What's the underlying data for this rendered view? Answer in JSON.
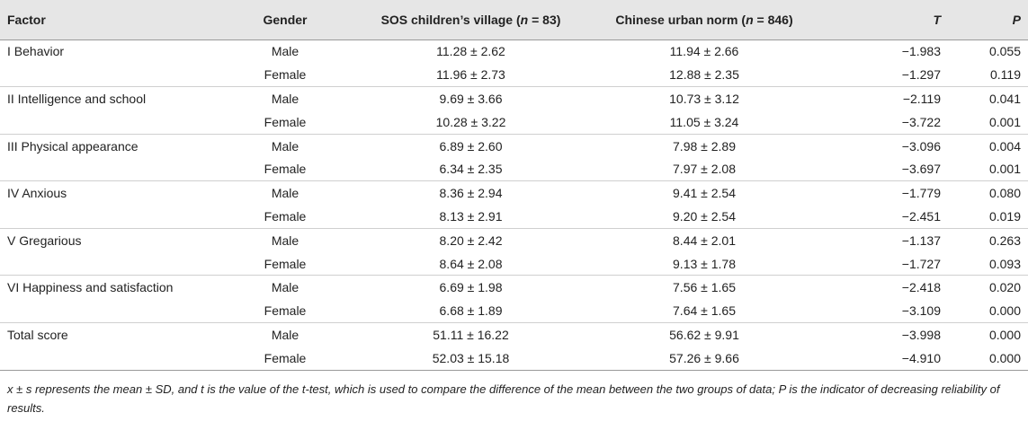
{
  "table": {
    "headers": {
      "factor": "Factor",
      "gender": "Gender",
      "sos_prefix": "SOS children’s village (",
      "sos_n": "n",
      "sos_suffix": " = 83)",
      "norm_prefix": "Chinese urban norm (",
      "norm_n": "n",
      "norm_suffix": " = 846)",
      "t": "T",
      "p": "P"
    },
    "rows": [
      {
        "factor": "I Behavior",
        "gender": "Male",
        "sos": "11.28 ± 2.62",
        "norm": "11.94 ± 2.66",
        "t": "−1.983",
        "p": "0.055"
      },
      {
        "factor": "",
        "gender": "Female",
        "sos": "11.96 ± 2.73",
        "norm": "12.88 ± 2.35",
        "t": "−1.297",
        "p": "0.119"
      },
      {
        "factor": "II Intelligence and school",
        "gender": "Male",
        "sos": "9.69 ± 3.66",
        "norm": "10.73 ± 3.12",
        "t": "−2.119",
        "p": "0.041"
      },
      {
        "factor": "",
        "gender": "Female",
        "sos": "10.28 ± 3.22",
        "norm": "11.05 ± 3.24",
        "t": "−3.722",
        "p": "0.001"
      },
      {
        "factor": "III Physical appearance",
        "gender": "Male",
        "sos": "6.89 ± 2.60",
        "norm": "7.98 ± 2.89",
        "t": "−3.096",
        "p": "0.004"
      },
      {
        "factor": "",
        "gender": "Female",
        "sos": "6.34 ± 2.35",
        "norm": "7.97 ± 2.08",
        "t": "−3.697",
        "p": "0.001"
      },
      {
        "factor": "IV Anxious",
        "gender": "Male",
        "sos": "8.36 ± 2.94",
        "norm": "9.41 ± 2.54",
        "t": "−1.779",
        "p": "0.080"
      },
      {
        "factor": "",
        "gender": "Female",
        "sos": "8.13 ± 2.91",
        "norm": "9.20 ± 2.54",
        "t": "−2.451",
        "p": "0.019"
      },
      {
        "factor": "V Gregarious",
        "gender": "Male",
        "sos": "8.20 ± 2.42",
        "norm": "8.44 ± 2.01",
        "t": "−1.137",
        "p": "0.263"
      },
      {
        "factor": "",
        "gender": "Female",
        "sos": "8.64 ± 2.08",
        "norm": "9.13 ± 1.78",
        "t": "−1.727",
        "p": "0.093"
      },
      {
        "factor": "VI Happiness and satisfaction",
        "gender": "Male",
        "sos": "6.69 ± 1.98",
        "norm": "7.56 ± 1.65",
        "t": "−2.418",
        "p": "0.020"
      },
      {
        "factor": "",
        "gender": "Female",
        "sos": "6.68 ± 1.89",
        "norm": "7.64 ± 1.65",
        "t": "−3.109",
        "p": "0.000"
      },
      {
        "factor": "Total score",
        "gender": "Male",
        "sos": "51.11 ± 16.22",
        "norm": "56.62 ± 9.91",
        "t": "−3.998",
        "p": "0.000"
      },
      {
        "factor": "",
        "gender": "Female",
        "sos": "52.03 ± 15.18",
        "norm": "57.26 ± 9.66",
        "t": "−4.910",
        "p": "0.000"
      }
    ]
  },
  "footnote": "x ± s represents the mean ± SD, and t is the value of the t-test, which is used to compare the difference of the mean between the two groups of data; P is the indicator of decreasing reliability of results."
}
